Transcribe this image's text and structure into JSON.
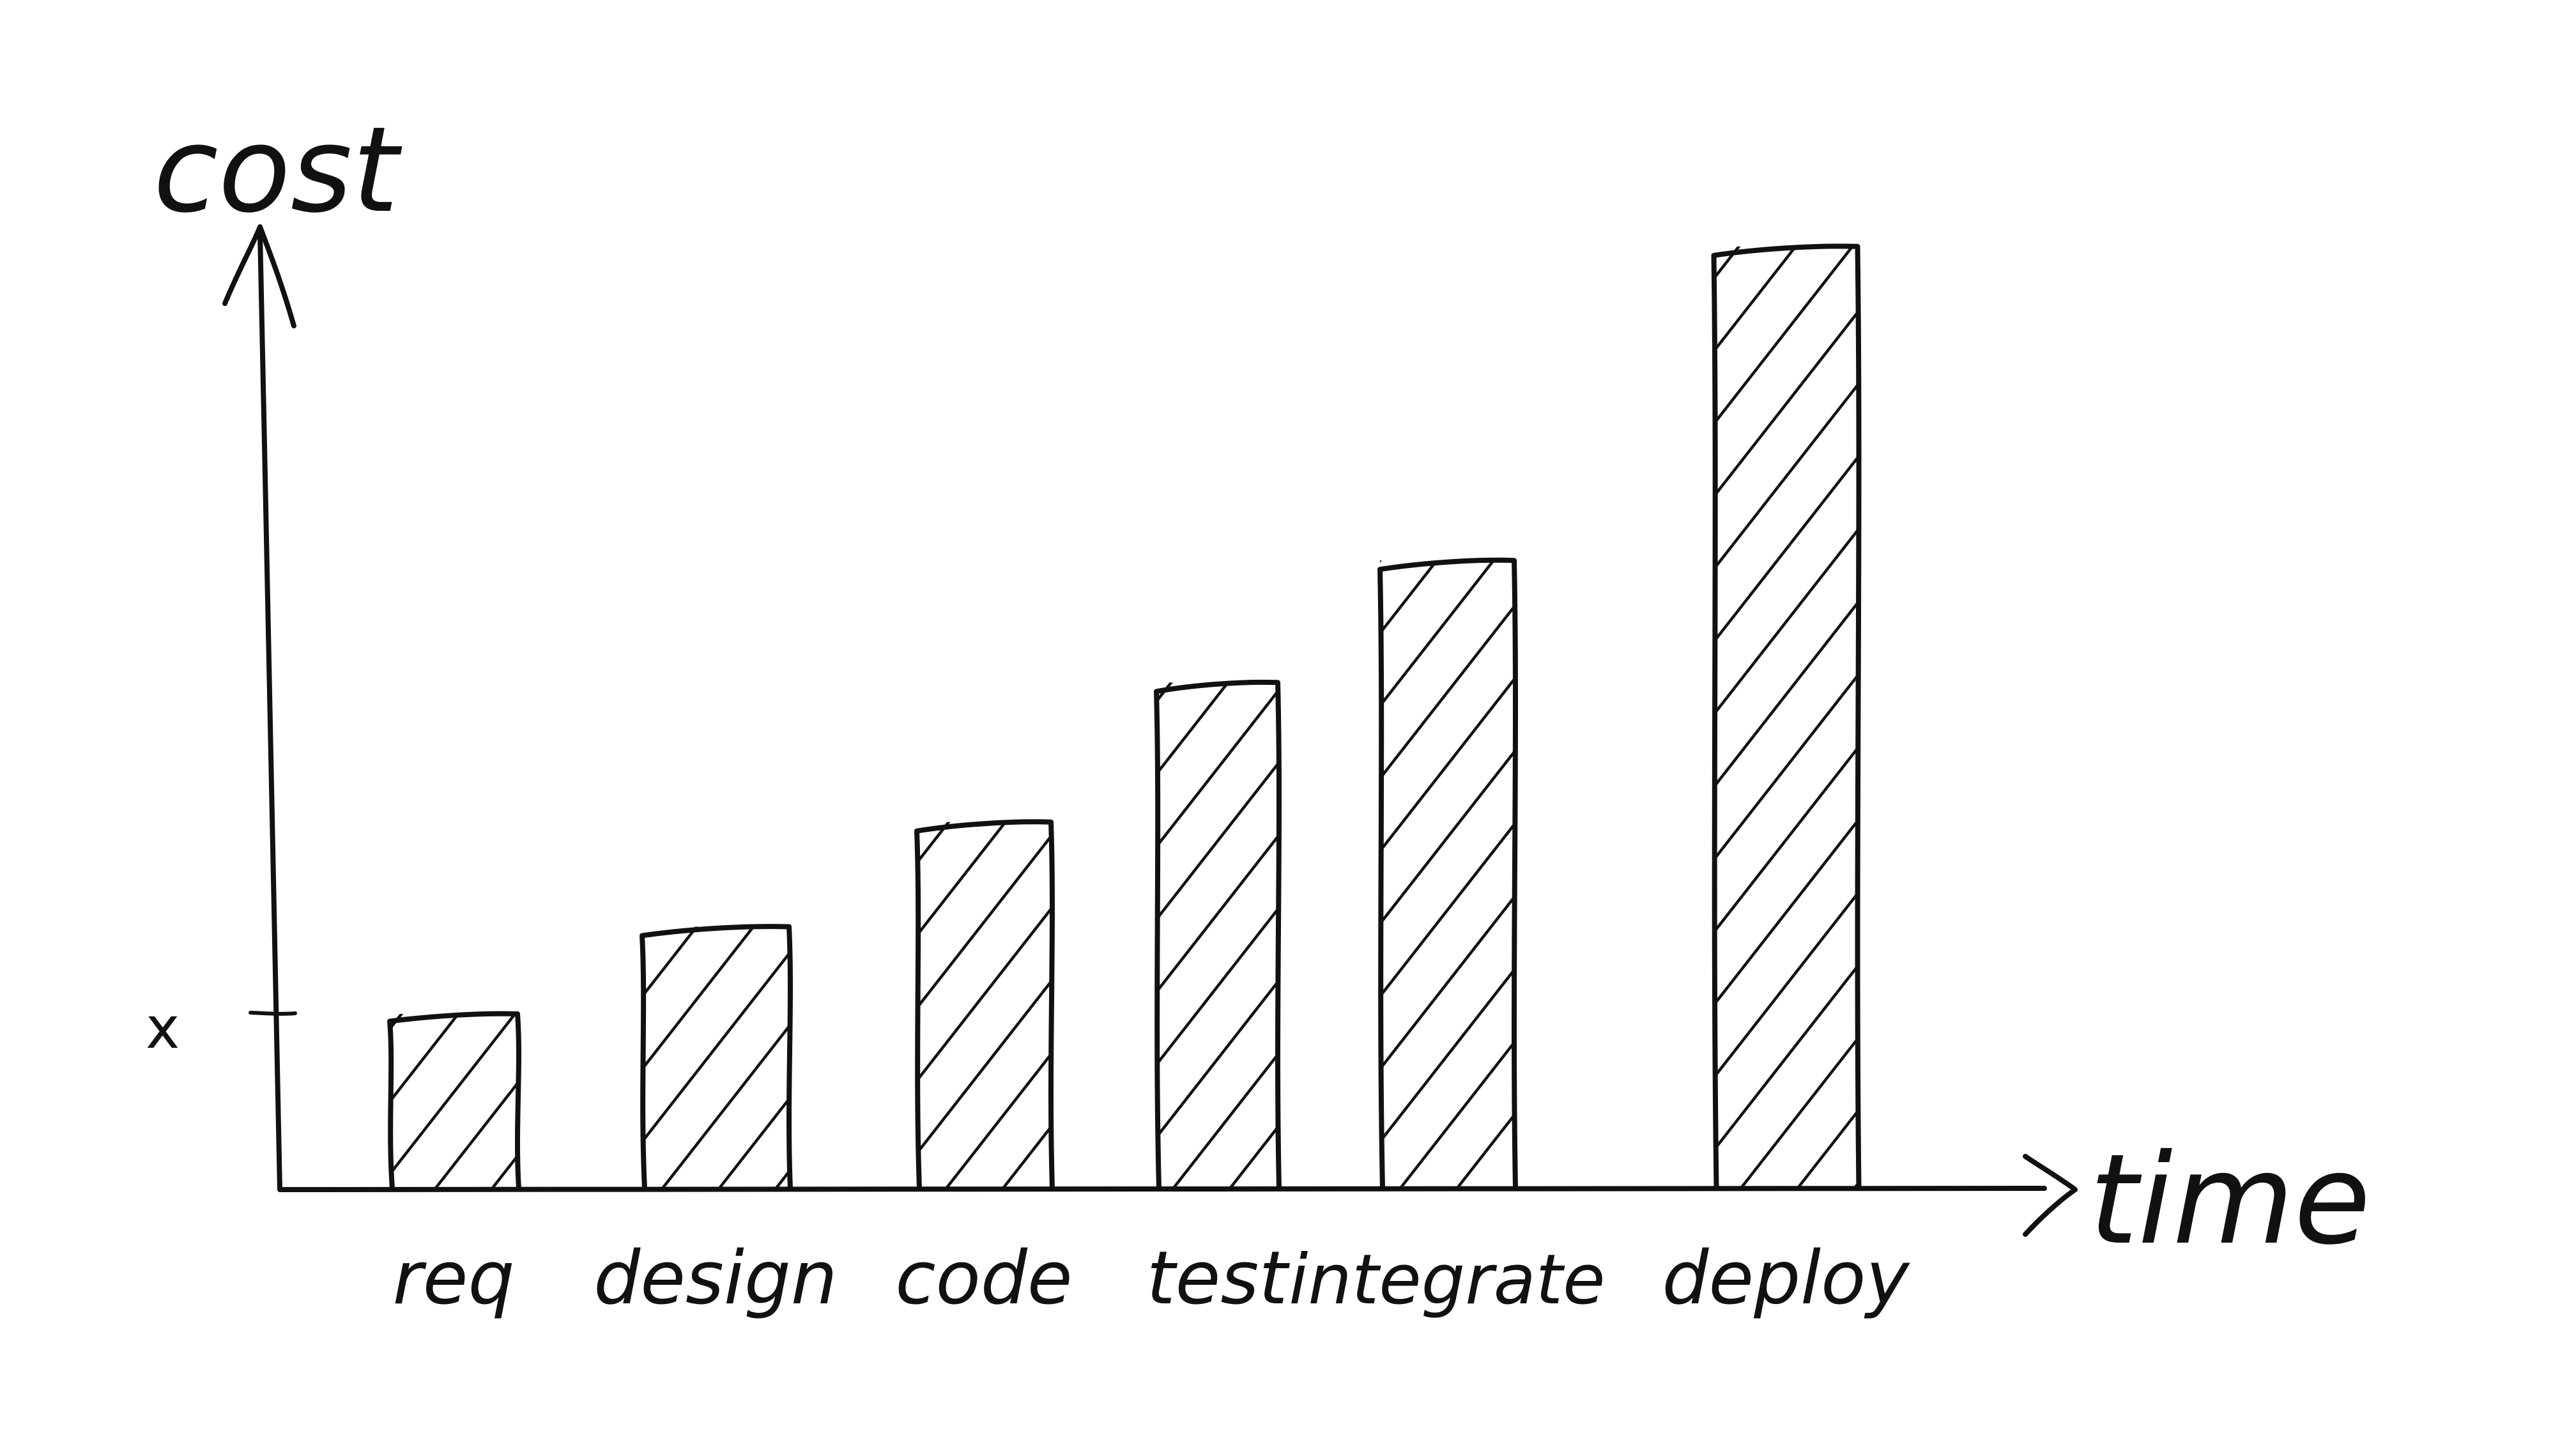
{
  "chart_data": {
    "type": "bar",
    "title": "",
    "xlabel": "time",
    "ylabel": "cost",
    "ytick_label": "x",
    "ytick_value": 1,
    "categories": [
      "req",
      "design",
      "code",
      "test",
      "integrate",
      "deploy"
    ],
    "values": [
      1,
      1.5,
      2.1,
      2.9,
      3.6,
      5.4
    ],
    "ylim": [
      0,
      5.8
    ],
    "grid": false,
    "legend": "none",
    "bar_fill": "hatched"
  },
  "colors": {
    "ink": "#111111",
    "background": "#ffffff"
  }
}
